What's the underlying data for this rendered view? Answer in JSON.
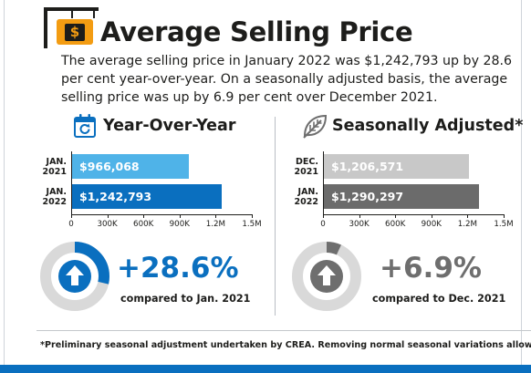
{
  "header": {
    "title": "Average Selling Price",
    "sign_symbol": "$",
    "intro": "The average selling price in January 2022 was $1,242,793 up by 28.6 per cent year-over-year. On a seasonally adjusted basis, the average selling price was up by 6.9 per cent over December 2021."
  },
  "yoy": {
    "title": "Year-Over-Year",
    "icon": "calendar-refresh-icon",
    "change": "+28.6%",
    "compare": "compared to Jan. 2021",
    "change_fraction": 0.286,
    "accent": "#0a6fbf"
  },
  "sa": {
    "title": "Seasonally Adjusted*",
    "icon": "leaf-icon",
    "change": "+6.9%",
    "compare": "compared to Dec. 2021",
    "change_fraction": 0.069,
    "accent": "#6e6e6e"
  },
  "footnote": "*Preliminary seasonal adjustment undertaken by CREA. Removing normal seasonal variations allows",
  "chart_data": [
    {
      "type": "bar",
      "orientation": "horizontal",
      "categories": [
        [
          "JAN.",
          "2021"
        ],
        [
          "JAN.",
          "2022"
        ]
      ],
      "values": [
        966068,
        1242793
      ],
      "value_labels": [
        "$966,068",
        "$1,242,793"
      ],
      "colors": [
        "#4fb3e8",
        "#0a6fbf"
      ],
      "xlim": [
        0,
        1500000
      ],
      "xticks": [
        0,
        300000,
        600000,
        900000,
        1200000,
        1500000
      ],
      "xtick_labels": [
        "0",
        "300K",
        "600K",
        "900K",
        "1.2M",
        "1.5M"
      ]
    },
    {
      "type": "bar",
      "orientation": "horizontal",
      "categories": [
        [
          "DEC.",
          "2021"
        ],
        [
          "JAN.",
          "2022"
        ]
      ],
      "values": [
        1206571,
        1290297
      ],
      "value_labels": [
        "$1,206,571",
        "$1,290,297"
      ],
      "colors": [
        "#c8c8c8",
        "#6b6b6b"
      ],
      "xlim": [
        0,
        1500000
      ],
      "xticks": [
        0,
        300000,
        600000,
        900000,
        1200000,
        1500000
      ],
      "xtick_labels": [
        "0",
        "300K",
        "600K",
        "900K",
        "1.2M",
        "1.5M"
      ]
    }
  ]
}
